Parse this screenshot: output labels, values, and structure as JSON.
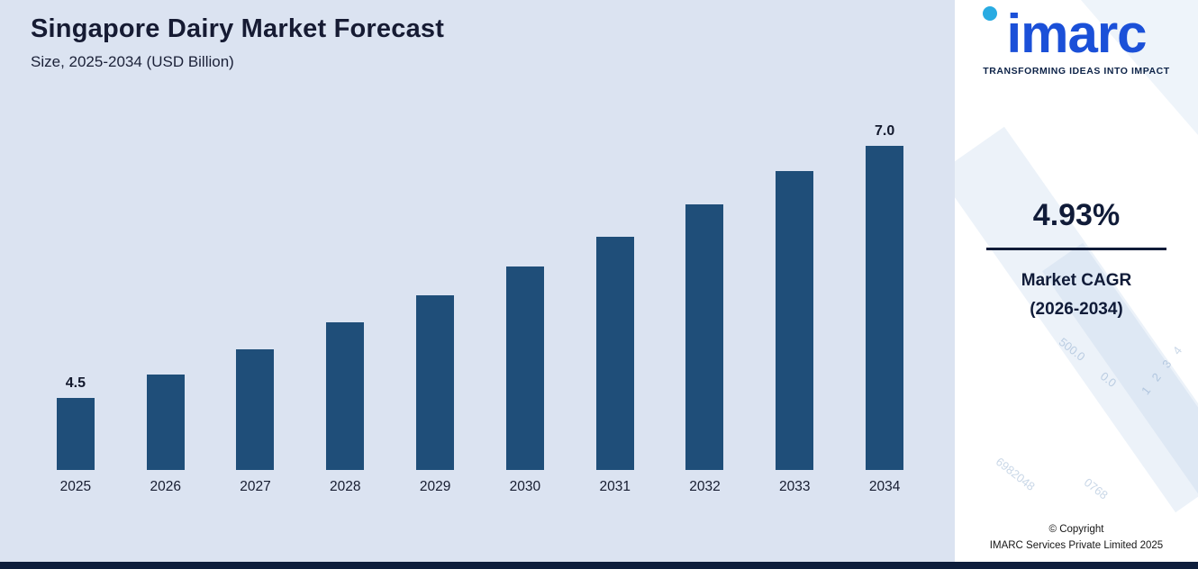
{
  "chart_data": {
    "type": "bar",
    "title": "Singapore Dairy Market Forecast",
    "subtitle": "Size, 2025-2034 (USD Billion)",
    "categories": [
      "2025",
      "2026",
      "2027",
      "2028",
      "2029",
      "2030",
      "2031",
      "2032",
      "2033",
      "2034"
    ],
    "values": [
      4.5,
      4.72,
      4.95,
      5.2,
      5.45,
      5.72,
      6.0,
      6.3,
      6.61,
      7.0
    ],
    "value_labels": [
      {
        "index": 0,
        "text": "4.5"
      },
      {
        "index": 9,
        "text": "7.0"
      }
    ],
    "xlabel": "",
    "ylabel": "",
    "ylim": [
      3.83,
      7.05
    ],
    "grid": false,
    "legend": false,
    "bar_color": "#1f4e79",
    "background": "#dbe3f1"
  },
  "sidebar": {
    "logo_text": "imarc",
    "tagline": "TRANSFORMING IDEAS INTO IMPACT",
    "cagr_value": "4.93%",
    "cagr_label_line1": "Market CAGR",
    "cagr_label_line2": "(2026-2034)",
    "copyright_line1": "© Copyright",
    "copyright_line2": "IMARC Services Private Limited 2025",
    "watermark_numbers": [
      "500.0",
      "0.0",
      "1 2 3 4",
      "6982048",
      "0768"
    ]
  },
  "colors": {
    "bar": "#1f4e79",
    "chart_background": "#dbe3f1",
    "brand_blue": "#1b50d8",
    "brand_cyan": "#29abe2",
    "navy": "#0e1e3c"
  }
}
